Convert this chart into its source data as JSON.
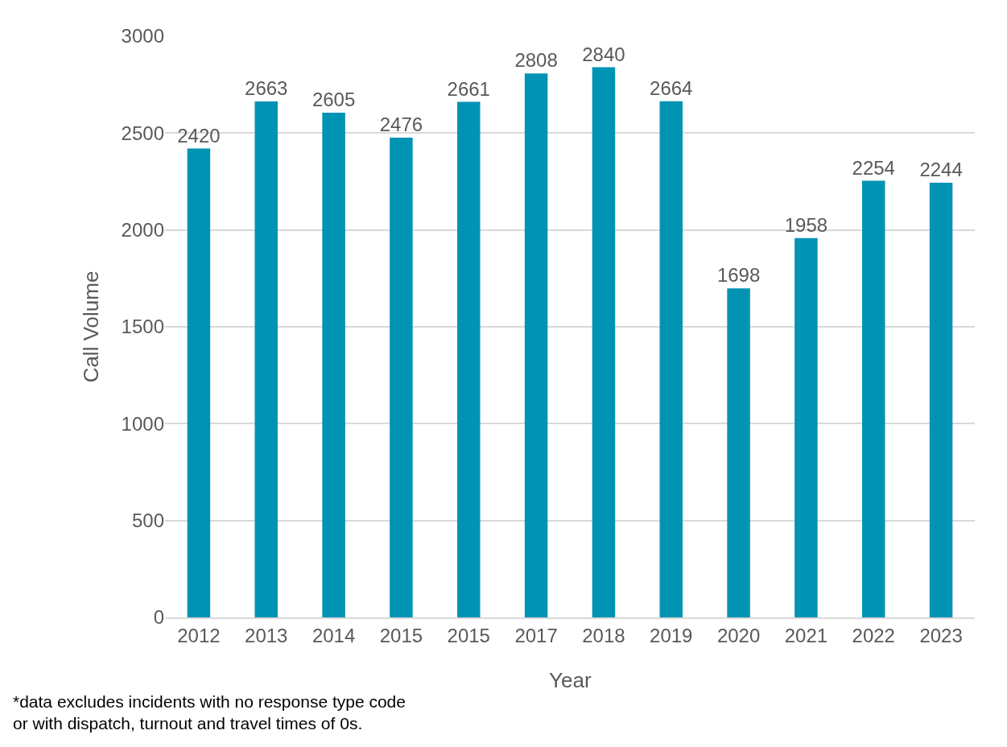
{
  "chart_data": {
    "type": "bar",
    "xlabel": "Year",
    "ylabel": "Call Volume",
    "categories": [
      "2012",
      "2013",
      "2014",
      "2015",
      "2015",
      "2017",
      "2018",
      "2019",
      "2020",
      "2021",
      "2022",
      "2023"
    ],
    "values": [
      2420,
      2663,
      2605,
      2476,
      2661,
      2808,
      2840,
      2664,
      1698,
      1958,
      2254,
      2244
    ],
    "color": "#0193b4",
    "data_labels": true,
    "ylim": [
      0,
      3000
    ],
    "yticks": [
      0,
      500,
      1000,
      1500,
      2000,
      2500,
      3000
    ],
    "grid": "y",
    "annotations": [
      "*data excludes incidents with no response type code\nor with dispatch, turnout and travel times of 0s."
    ]
  }
}
